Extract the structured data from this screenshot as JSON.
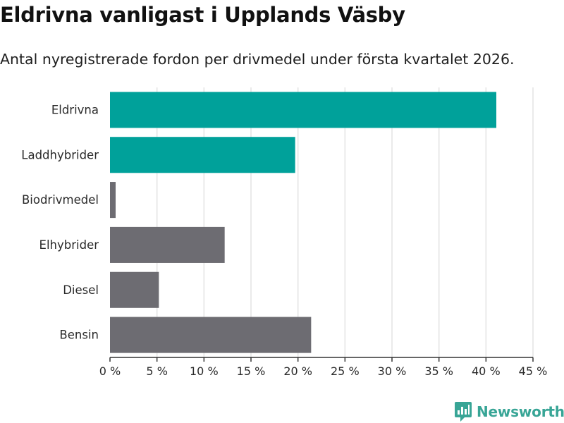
{
  "title": "Eldrivna vanligast i Upplands Väsby",
  "subtitle": "Antal nyregistrerade fordon per drivmedel under första kvartalet 2026.",
  "brand": {
    "name": "Newsworthy",
    "color": "#38a596"
  },
  "chart_data": {
    "type": "bar",
    "orientation": "horizontal",
    "categories": [
      "Eldrivna",
      "Laddhybrider",
      "Biodrivmedel",
      "Elhybrider",
      "Diesel",
      "Bensin"
    ],
    "values": [
      41.1,
      19.7,
      0.6,
      12.2,
      5.2,
      21.4
    ],
    "highlight": [
      true,
      true,
      false,
      false,
      false,
      false
    ],
    "colors": {
      "highlight": "#00a19a",
      "default": "#6d6c72",
      "grid": "#e3e3e3",
      "axis": "#333333"
    },
    "xlim": [
      0,
      45
    ],
    "xticks": [
      0,
      5,
      10,
      15,
      20,
      25,
      30,
      35,
      40,
      45
    ],
    "xtick_labels": [
      "0 %",
      "5 %",
      "10 %",
      "15 %",
      "20 %",
      "25 %",
      "30 %",
      "35 %",
      "40 %",
      "45 %"
    ],
    "xlabel": "",
    "ylabel": "",
    "grid": true
  }
}
